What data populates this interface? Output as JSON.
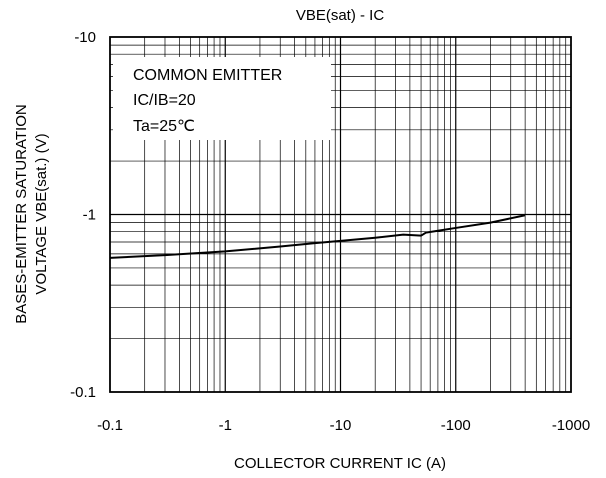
{
  "chart_data": {
    "type": "line",
    "title": "VBE(sat) - IC",
    "xlabel": "COLLECTOR CURRENT IC (A)",
    "ylabel_lines": [
      "BASES-EMITTER SATURATION",
      "VOLTAGE VBE(sat.) (V)"
    ],
    "x_scale": "log",
    "y_scale": "log",
    "xlim": [
      0.1,
      1000
    ],
    "ylim": [
      0.1,
      10
    ],
    "x_ticks": [
      {
        "value": 0.1,
        "label": "-0.1"
      },
      {
        "value": 1,
        "label": "-1"
      },
      {
        "value": 10,
        "label": "-10"
      },
      {
        "value": 100,
        "label": "-100"
      },
      {
        "value": 1000,
        "label": "-1000"
      }
    ],
    "y_ticks": [
      {
        "value": 0.1,
        "label": "-0.1"
      },
      {
        "value": 1,
        "label": "-1"
      },
      {
        "value": 10,
        "label": "-10"
      }
    ],
    "grid": true,
    "annotation_lines": [
      "COMMON EMITTER",
      "IC/IB=20",
      "Ta=25℃"
    ],
    "series": [
      {
        "x": [
          0.1,
          0.3,
          1,
          3,
          6,
          10,
          20,
          35,
          50,
          55,
          70,
          100,
          200,
          400
        ],
        "y": [
          0.57,
          0.59,
          0.62,
          0.66,
          0.69,
          0.71,
          0.74,
          0.77,
          0.76,
          0.79,
          0.81,
          0.84,
          0.9,
          0.99
        ]
      }
    ]
  }
}
